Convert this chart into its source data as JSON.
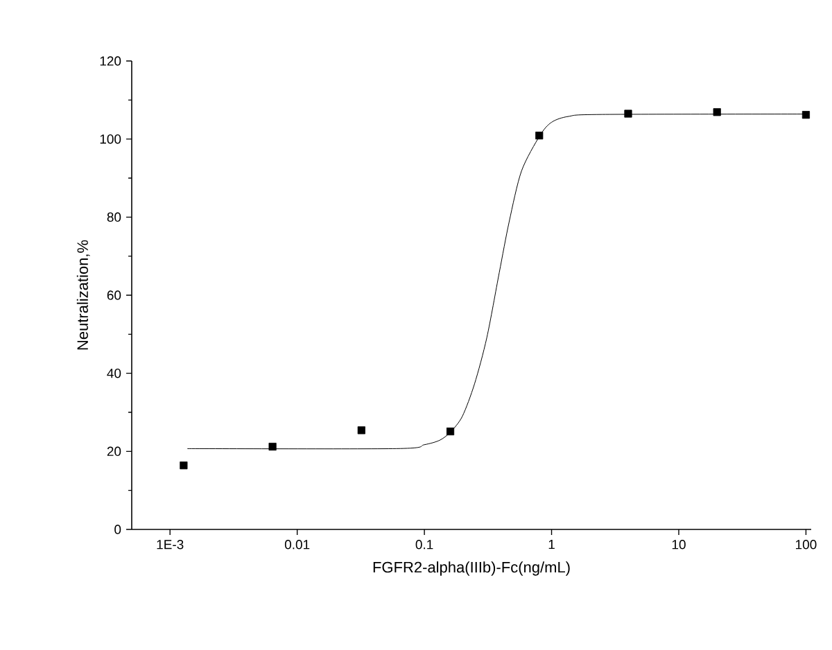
{
  "chart_data": {
    "type": "scatter",
    "xlabel": "FGFR2-alpha(IIIb)-Fc(ng/mL)",
    "ylabel": "Neutralization,%",
    "log": "x",
    "xlim": [
      0.0005,
      110
    ],
    "xticks": [
      {
        "value": 0.001,
        "label": "1E-3"
      },
      0.01,
      0.1,
      1,
      10,
      100
    ],
    "ylim": [
      0,
      120
    ],
    "yticks": [
      0,
      20,
      40,
      60,
      80,
      100,
      120
    ],
    "marker": "square",
    "series": [
      {
        "color": "#000000",
        "x": [
          0.00128,
          0.0064,
          0.032,
          0.16,
          0.8,
          4,
          20,
          100
        ],
        "values": [
          16.4,
          21.2,
          25.4,
          25.1,
          100.9,
          106.5,
          106.9,
          106.2
        ]
      },
      {
        "type": "line",
        "color": "#000000",
        "marker": "none",
        "x": [
          0.00137,
          0.06,
          0.1,
          0.133,
          0.162,
          0.199,
          0.248,
          0.31,
          0.388,
          0.464,
          0.58,
          0.81,
          1.0,
          1.36,
          2.5,
          105
        ],
        "values": [
          20.7,
          20.7,
          21.7,
          22.9,
          25.1,
          29,
          37.3,
          49.2,
          65.8,
          78.8,
          91.8,
          100.9,
          104.3,
          105.8,
          106.3,
          106.4
        ]
      }
    ]
  }
}
